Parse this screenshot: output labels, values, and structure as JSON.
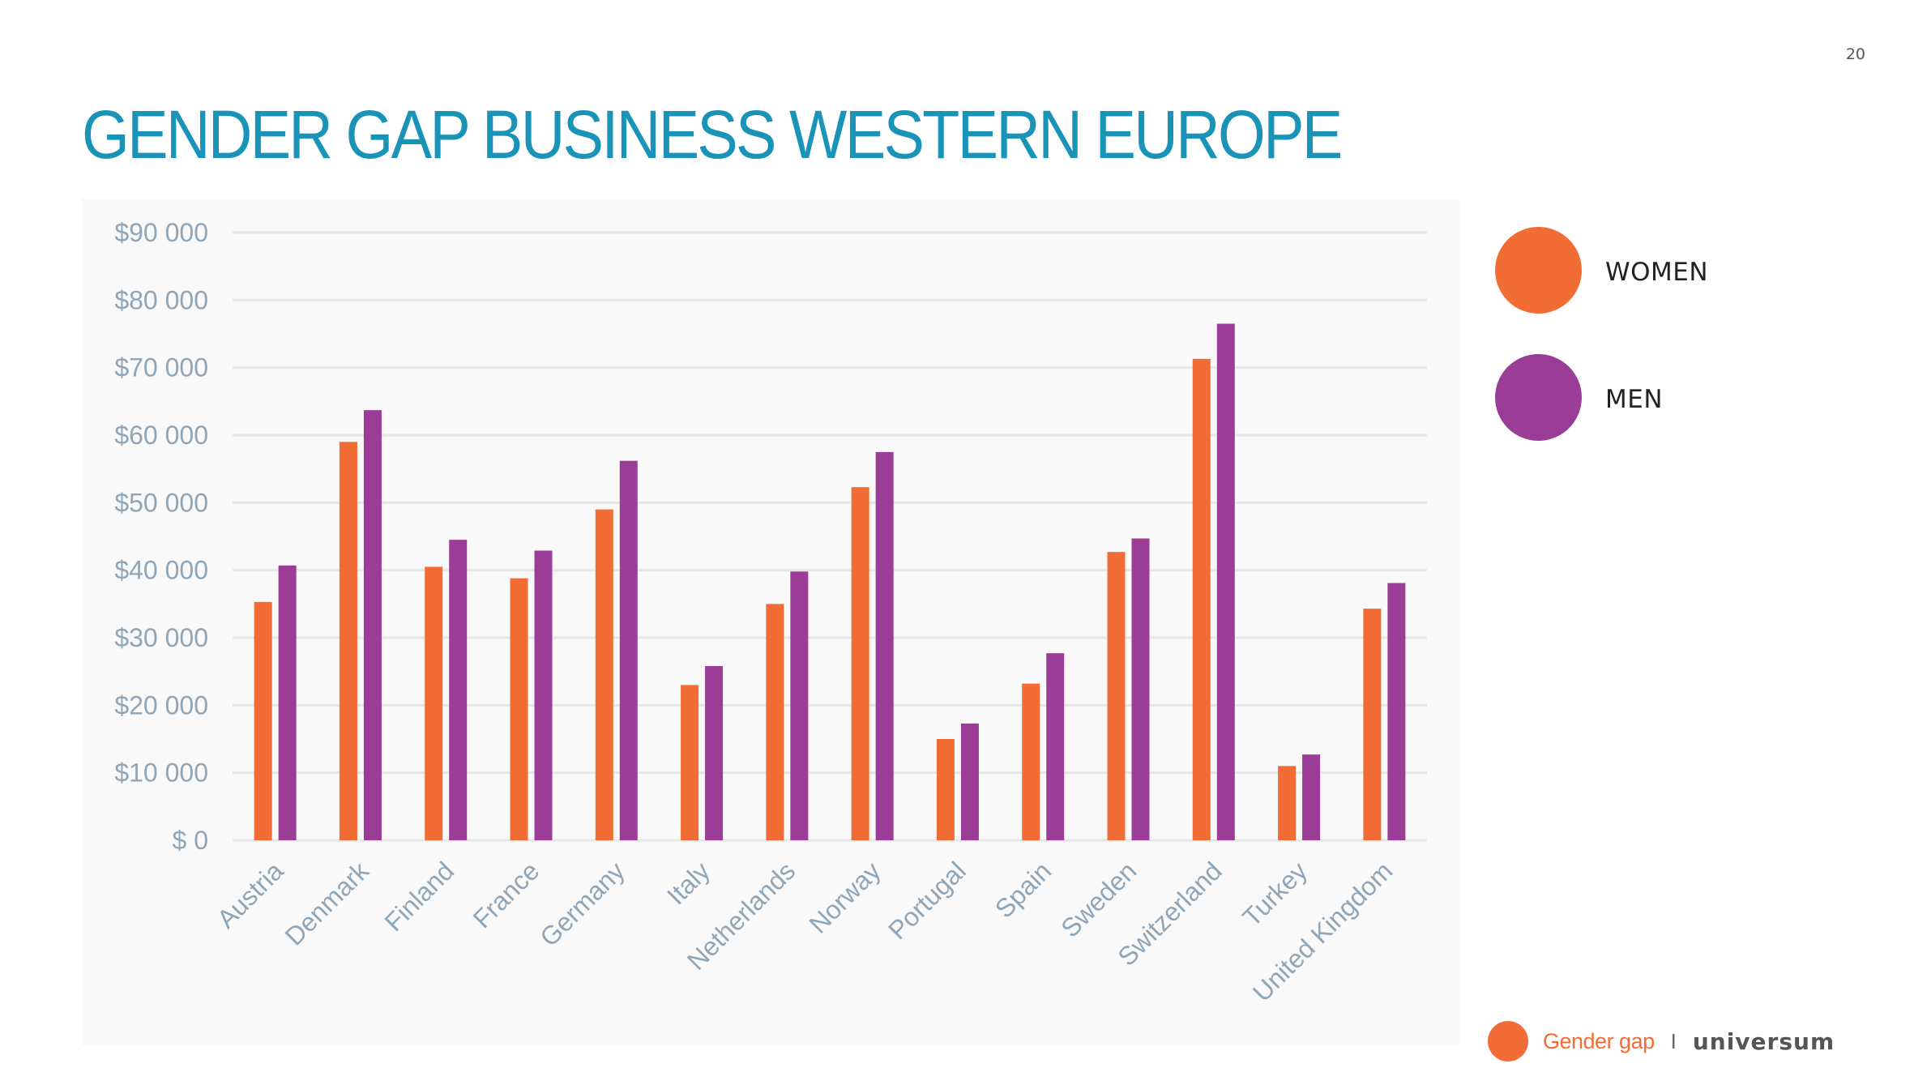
{
  "page": {
    "number": "20",
    "title": "GENDER GAP BUSINESS WESTERN EUROPE"
  },
  "colors": {
    "women": "#f26d35",
    "men": "#9b3d96",
    "title": "#1a93b9",
    "axis_text": "#8fa5b8",
    "grid": "#e6e6e6"
  },
  "legend": {
    "women_label": "WOMEN",
    "men_label": "MEN"
  },
  "footer": {
    "label": "Gender gap",
    "separator": "I",
    "brand": "universum"
  },
  "chart_data": {
    "type": "bar",
    "categories": [
      "Austria",
      "Denmark",
      "Finland",
      "France",
      "Germany",
      "Italy",
      "Netherlands",
      "Norway",
      "Portugal",
      "Spain",
      "Sweden",
      "Switzerland",
      "Turkey",
      "United Kingdom"
    ],
    "series": [
      {
        "name": "WOMEN",
        "values": [
          35300,
          59000,
          40500,
          38800,
          49000,
          23000,
          35000,
          52300,
          15000,
          23200,
          42700,
          71300,
          11000,
          34300
        ]
      },
      {
        "name": "MEN",
        "values": [
          40700,
          63700,
          44500,
          42900,
          56200,
          25800,
          39800,
          57500,
          17300,
          27700,
          44700,
          76500,
          12700,
          38100
        ]
      }
    ],
    "ylim": [
      0,
      90000
    ],
    "yticks": [
      "$90 000",
      "$80 000",
      "$70 000",
      "$60 000",
      "$50 000",
      "$40 000",
      "$30 000",
      "$20 000",
      "$10 000",
      "$ 0"
    ],
    "ytick_values": [
      90000,
      80000,
      70000,
      60000,
      50000,
      40000,
      30000,
      20000,
      10000,
      0
    ],
    "grid": true,
    "legend_position": "right"
  }
}
